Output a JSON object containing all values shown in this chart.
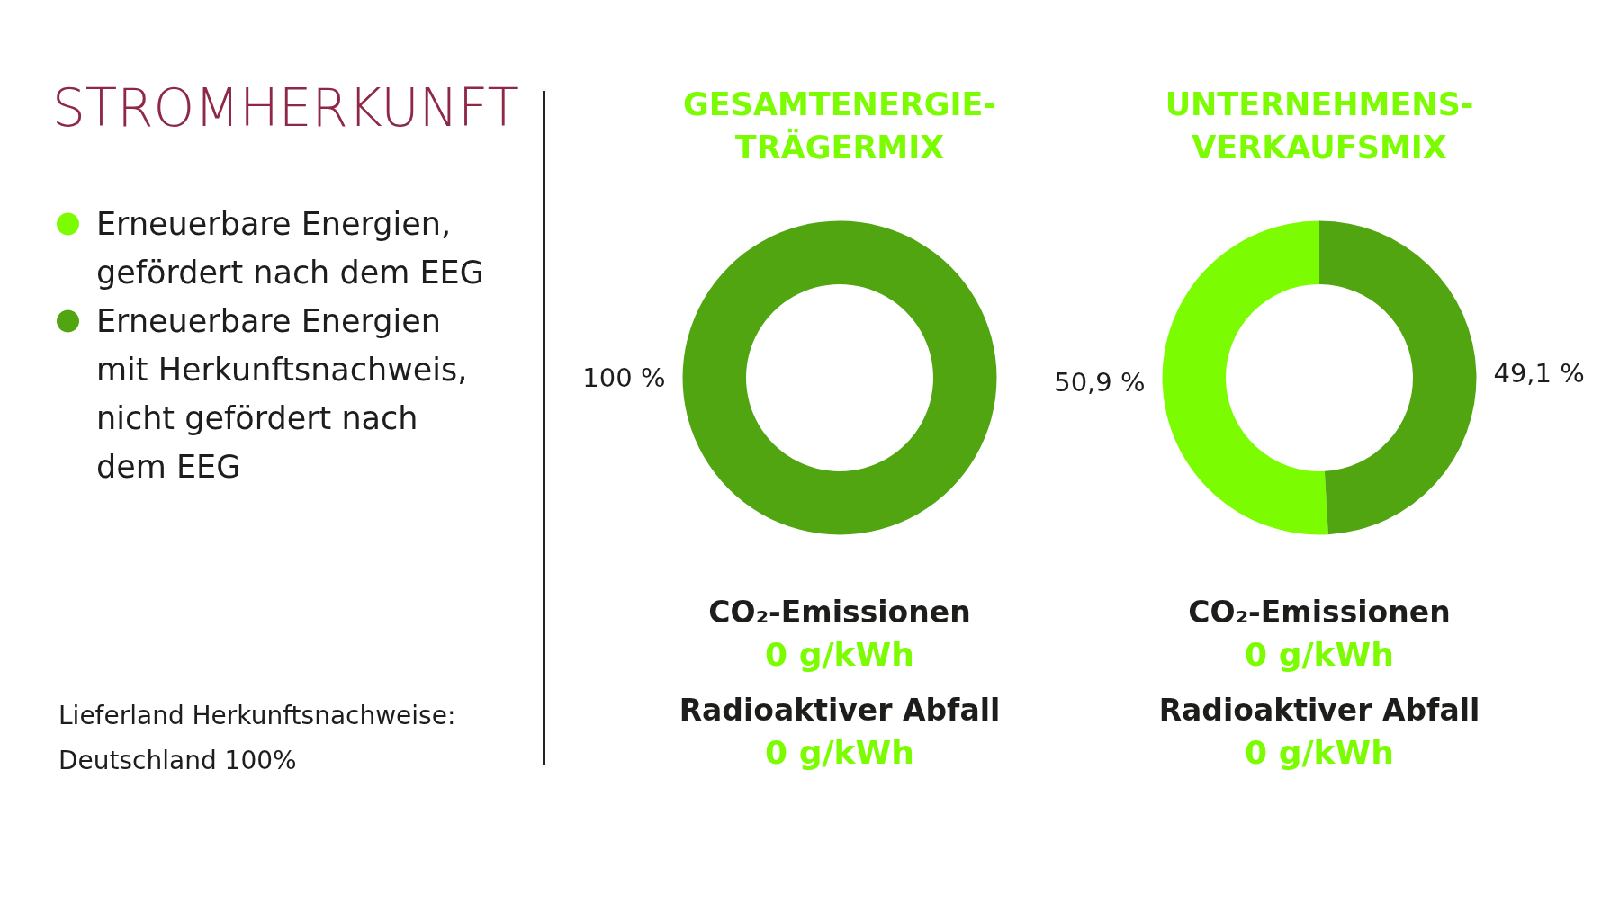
{
  "chart_data": {
    "type": "donut",
    "title": "STROMHERKUNFT",
    "categories": [
      "Erneuerbare Energien, gefördert nach dem EEG",
      "Erneuerbare Energien mit Herkunftsnachweis, nicht gefördert nach dem EEG"
    ],
    "colors": [
      "#7cfc00",
      "#50a511"
    ],
    "series": [
      {
        "name": "GESAMTENERGIE-TRÄGERMIX",
        "values": [
          null,
          100
        ],
        "value_labels": [
          null,
          "100 %"
        ]
      },
      {
        "name": "UNTERNEHMENS-VERKAUFSMIX",
        "values": [
          50.9,
          49.1
        ],
        "value_labels": [
          "50,9 %",
          "49,1 %"
        ]
      }
    ],
    "legend": "left",
    "annotations": [
      "Lieferland Herkunftsnachweise: Deutschland 100%",
      "CO₂-Emissionen",
      "0 g/kWh",
      "Radioaktiver Abfall",
      "0 g/kWh",
      "CO₂-Emissionen",
      "0 g/kWh",
      "Radioaktiver Abfall",
      "0 g/kWh"
    ]
  }
}
